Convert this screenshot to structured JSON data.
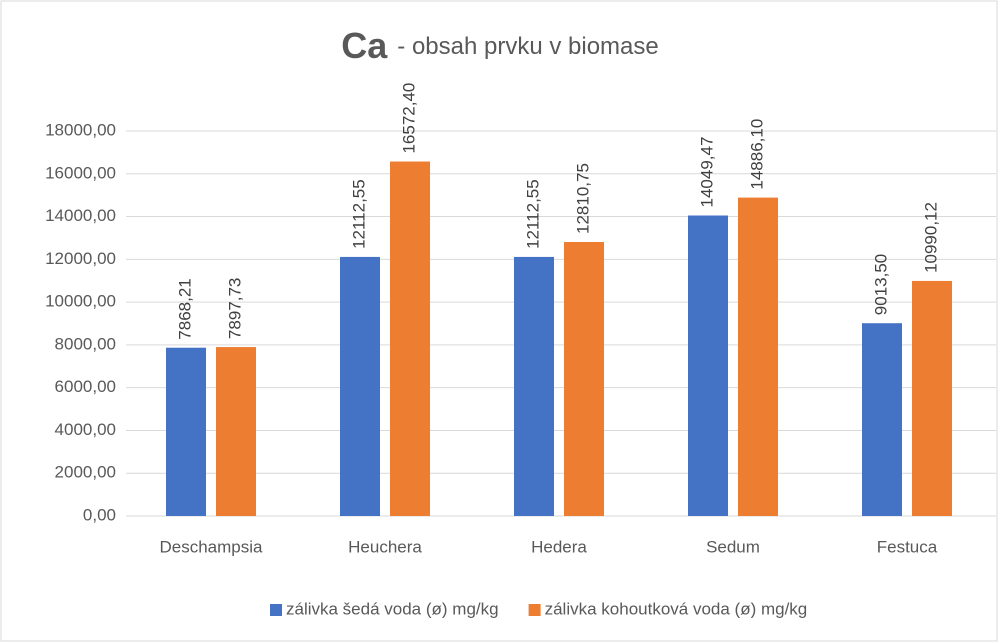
{
  "chart_data": {
    "type": "bar",
    "title": "Ca",
    "title_suffix": "- obsah prvku v biomase",
    "categories": [
      "Deschampsia",
      "Heuchera",
      "Hedera",
      "Sedum",
      "Festuca"
    ],
    "series": [
      {
        "name": "zálivka šedá voda (ø) mg/kg",
        "color": "#4472c4",
        "values": [
          7868.21,
          12112.55,
          12112.55,
          14049.47,
          9013.5
        ],
        "value_labels": [
          "7868,21",
          "12112,55",
          "12112,55",
          "14049,47",
          "9013,50"
        ]
      },
      {
        "name": "zálivka kohoutková voda (ø) mg/kg",
        "color": "#ed7d31",
        "values": [
          7897.73,
          16572.4,
          12810.75,
          14886.1,
          10990.12
        ],
        "value_labels": [
          "7897,73",
          "16572,40",
          "12810,75",
          "14886,10",
          "10990,12"
        ]
      }
    ],
    "ylim": [
      0,
      18000
    ],
    "yticks": [
      {
        "value": 0,
        "label": "0,00"
      },
      {
        "value": 2000,
        "label": "2000,00"
      },
      {
        "value": 4000,
        "label": "4000,00"
      },
      {
        "value": 6000,
        "label": "6000,00"
      },
      {
        "value": 8000,
        "label": "8000,00"
      },
      {
        "value": 10000,
        "label": "10000,00"
      },
      {
        "value": 12000,
        "label": "12000,00"
      },
      {
        "value": 14000,
        "label": "14000,00"
      },
      {
        "value": 16000,
        "label": "16000,00"
      },
      {
        "value": 18000,
        "label": "18000,00"
      }
    ],
    "grid": true,
    "legend": "bottom"
  }
}
